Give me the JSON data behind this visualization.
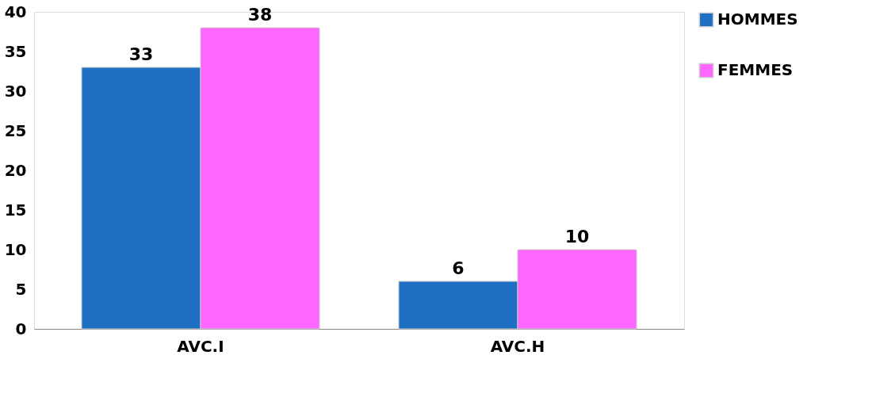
{
  "chart_data": {
    "type": "bar",
    "categories": [
      "AVC.I",
      "AVC.H"
    ],
    "series": [
      {
        "name": "HOMMES",
        "color": "#1f6fc4",
        "values": [
          33,
          6
        ]
      },
      {
        "name": "FEMMES",
        "color": "#ff66ff",
        "values": [
          38,
          10
        ]
      }
    ],
    "ylim": [
      0,
      40
    ],
    "yticks": [
      0,
      5,
      10,
      15,
      20,
      25,
      30,
      35,
      40
    ],
    "grid": false,
    "legend": "right",
    "data_labels": true
  }
}
